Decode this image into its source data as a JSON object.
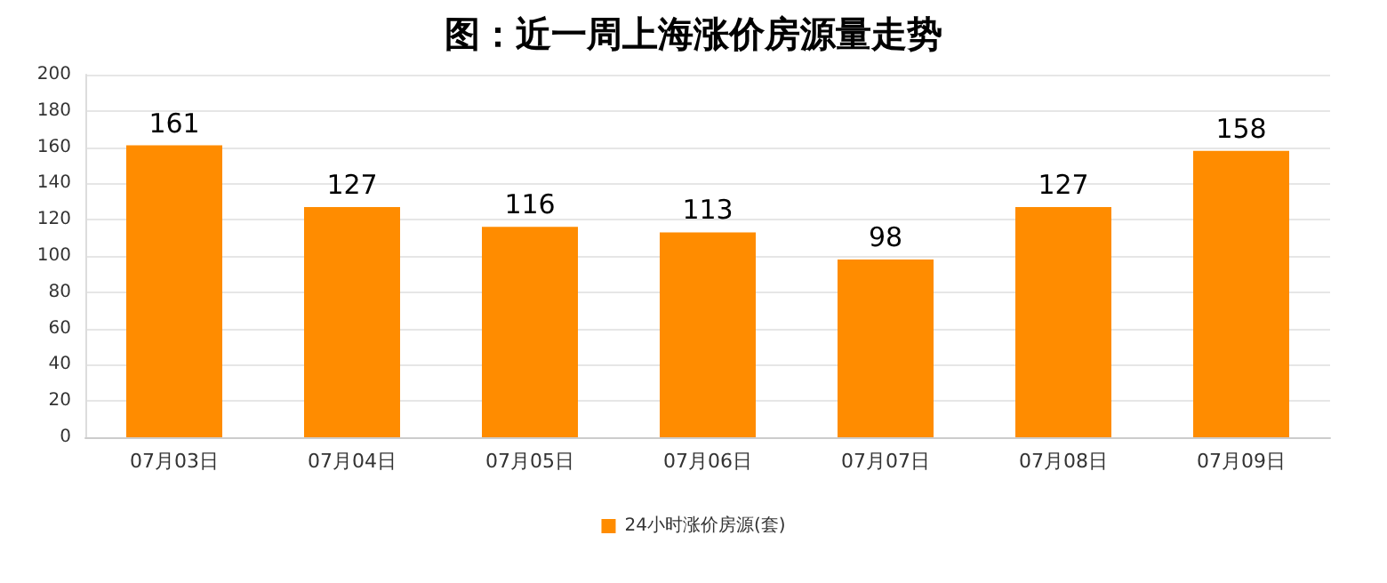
{
  "chart_data": {
    "type": "bar",
    "title": "图：近一周上海涨价房源量走势",
    "categories": [
      "07月03日",
      "07月04日",
      "07月05日",
      "07月06日",
      "07月07日",
      "07月08日",
      "07月09日"
    ],
    "series": [
      {
        "name": "24小时涨价房源(套)",
        "color": "#ff8c00",
        "values": [
          161,
          127,
          116,
          113,
          98,
          127,
          158
        ]
      }
    ],
    "ylim": [
      0,
      200
    ],
    "yticks": [
      0,
      20,
      40,
      60,
      80,
      100,
      120,
      140,
      160,
      180,
      200
    ],
    "grid": "y",
    "legend": "bottom",
    "data_labels": true
  }
}
